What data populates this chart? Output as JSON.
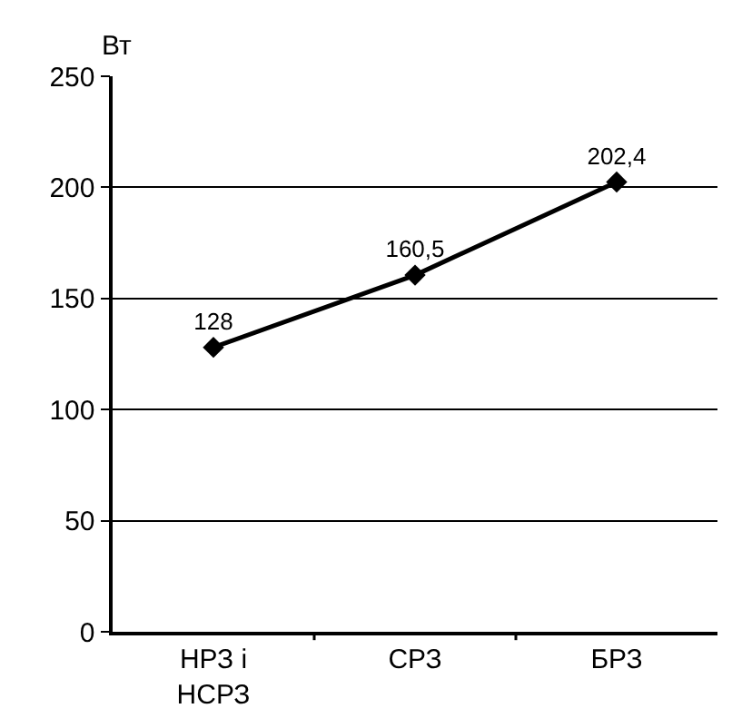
{
  "chart_data": {
    "type": "line",
    "ylabel": "Вт",
    "categories": [
      "НРЗ і\nНСРЗ",
      "СРЗ",
      "БРЗ"
    ],
    "series": [
      {
        "color": "#000000",
        "values": [
          128,
          160.5,
          202.4
        ],
        "value_labels": [
          "128",
          "160,5",
          "202,4"
        ]
      }
    ],
    "ylim": [
      0,
      250
    ],
    "yticks": [
      0,
      50,
      100,
      150,
      200,
      250
    ],
    "grid": "y",
    "marker": "diamond",
    "line_style": "solid",
    "legend": false
  }
}
